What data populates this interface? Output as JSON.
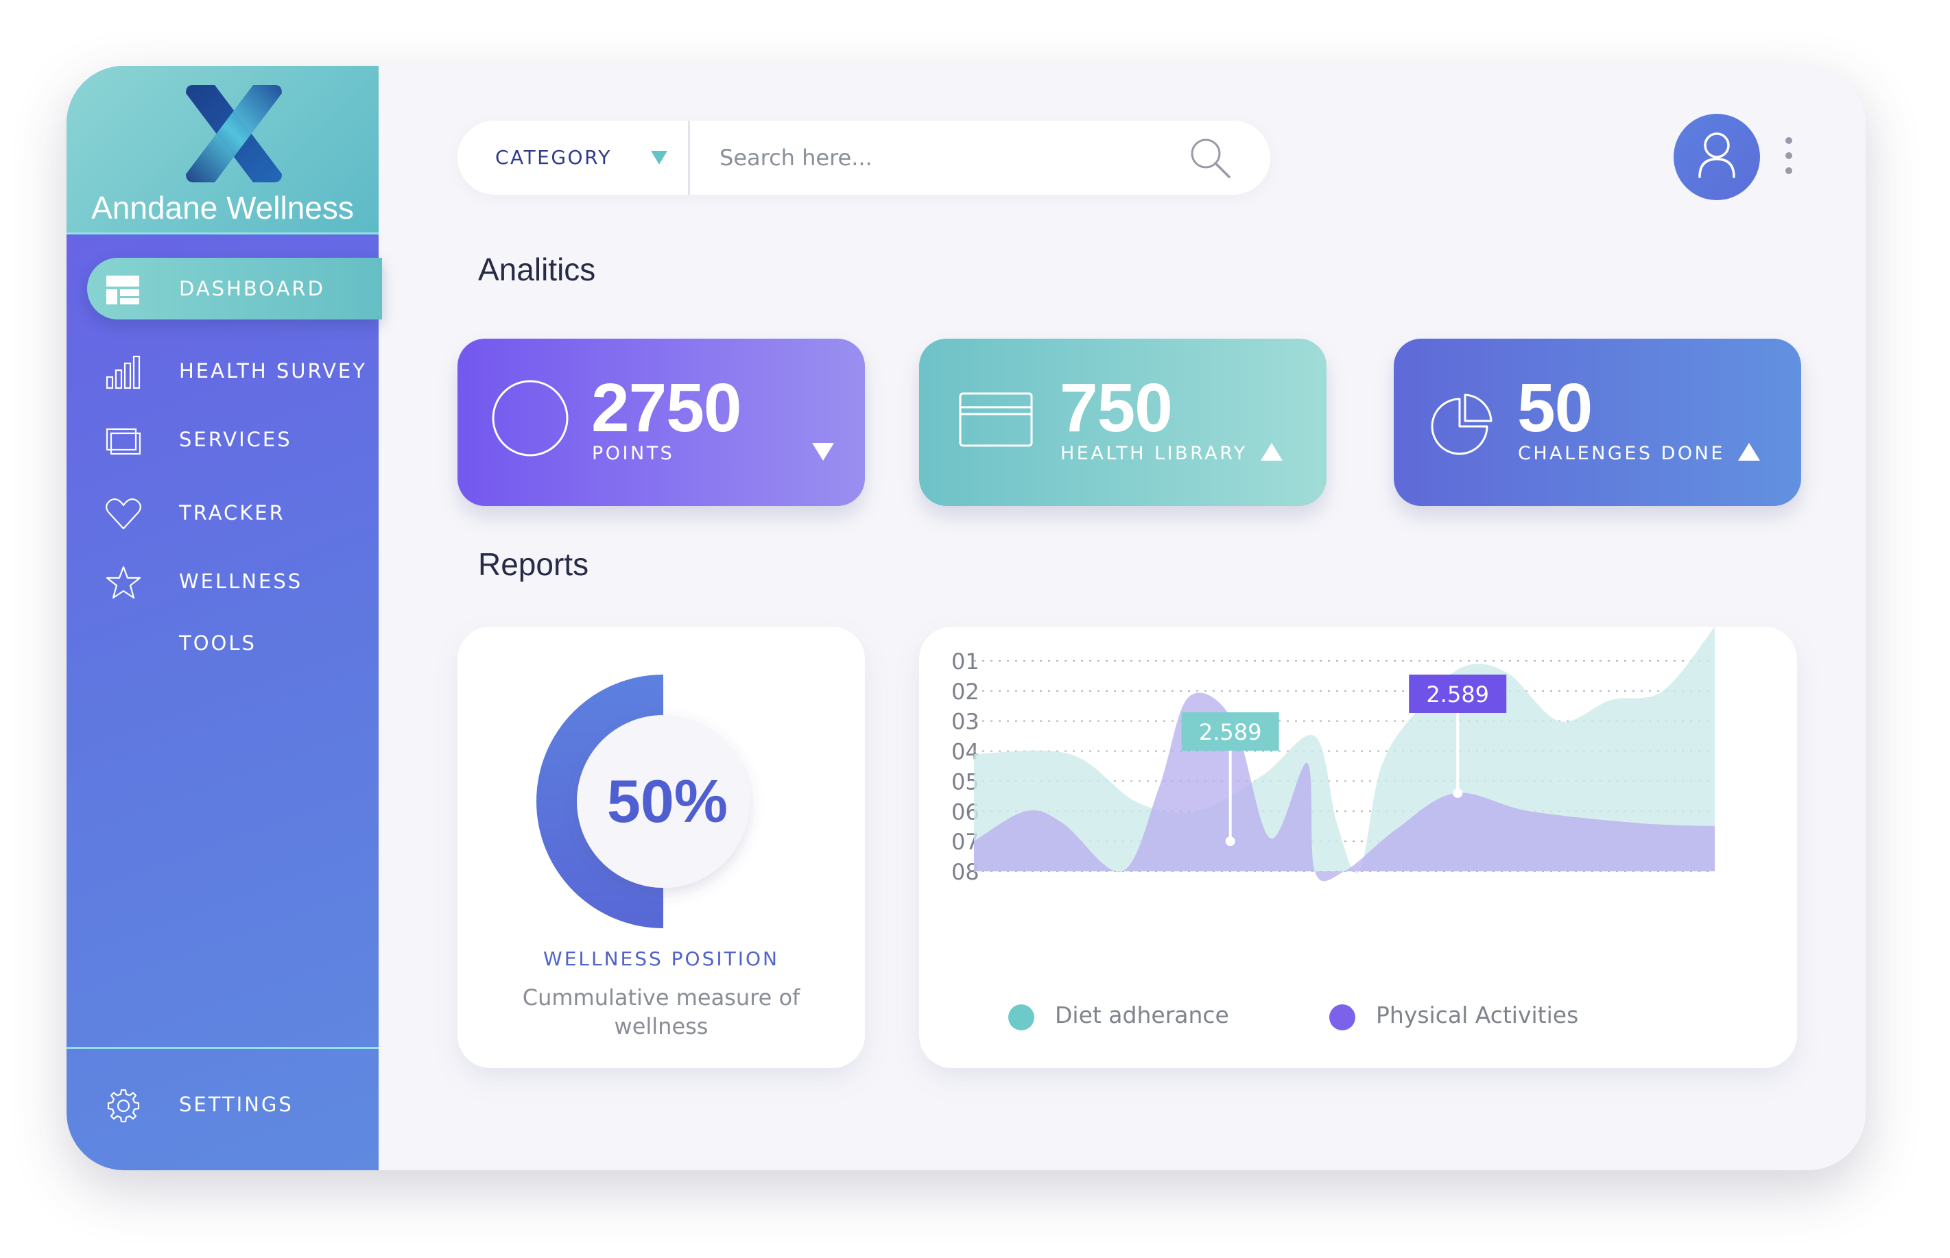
{
  "brand": {
    "name": "Anndane Wellness"
  },
  "sidebar": {
    "items": [
      {
        "label": "DASHBOARD",
        "icon": "dashboard-icon",
        "active": true
      },
      {
        "label": "HEALTH SURVEY",
        "icon": "bar-chart-icon",
        "active": false
      },
      {
        "label": "SERVICES",
        "icon": "layers-icon",
        "active": false
      },
      {
        "label": "TRACKER",
        "icon": "heart-icon",
        "active": false
      },
      {
        "label": "WELLNESS TOOLS",
        "icon": "star-icon",
        "active": false
      }
    ],
    "settings": {
      "label": "SETTINGS",
      "icon": "gear-icon"
    }
  },
  "search": {
    "category_label": "CATEGORY",
    "placeholder": "Search here..."
  },
  "header": {
    "avatar_icon": "user-icon"
  },
  "analytics": {
    "title": "Analitics",
    "cards": [
      {
        "value": "2750",
        "label": "POINTS",
        "icon": "circle-icon",
        "trend": "down"
      },
      {
        "value": "750",
        "label": "HEALTH LIBRARY",
        "icon": "card-icon",
        "trend": "up"
      },
      {
        "value": "50",
        "label": "CHALENGES DONE",
        "icon": "pie-icon",
        "trend": "up"
      }
    ]
  },
  "reports": {
    "title": "Reports",
    "wellness": {
      "value": "50%",
      "percent": 50,
      "title": "WELLNESS POSITION",
      "description": "Cummulative measure of wellness"
    }
  },
  "colors": {
    "accent_purple": "#7458ef",
    "accent_teal": "#6ec2c8",
    "accent_blue": "#5f6ad8",
    "text_dark": "#272b46"
  },
  "chart_data": {
    "type": "area",
    "y_ticks": [
      "01",
      "02",
      "03",
      "04",
      "05",
      "06",
      "07",
      "08"
    ],
    "grid": "dotted horizontal",
    "legend_position": "bottom",
    "series": [
      {
        "name": "Diet adherance",
        "color": "#cdeaea",
        "dot_color": "#6ec9c9",
        "points": [
          [
            0,
            4.1
          ],
          [
            0.13,
            4.1
          ],
          [
            0.22,
            5.7
          ],
          [
            0.3,
            6.0
          ],
          [
            0.39,
            4.8
          ],
          [
            0.46,
            3.5
          ],
          [
            0.49,
            6.4
          ],
          [
            0.52,
            8.0
          ],
          [
            0.55,
            4.5
          ],
          [
            0.6,
            2.6
          ],
          [
            0.66,
            1.2
          ],
          [
            0.72,
            1.4
          ],
          [
            0.79,
            3.0
          ],
          [
            0.86,
            2.3
          ],
          [
            0.93,
            2.0
          ],
          [
            1.0,
            0.0
          ]
        ]
      },
      {
        "name": "Physical Activities",
        "color": "#b9b1f0",
        "dot_color": "#7c62ea",
        "points": [
          [
            0,
            7.0
          ],
          [
            0.07,
            6.0
          ],
          [
            0.12,
            6.4
          ],
          [
            0.2,
            8.0
          ],
          [
            0.25,
            5.2
          ],
          [
            0.29,
            2.2
          ],
          [
            0.35,
            3.0
          ],
          [
            0.4,
            6.9
          ],
          [
            0.45,
            4.4
          ],
          [
            0.46,
            8.0
          ],
          [
            0.5,
            8.0
          ],
          [
            0.57,
            6.6
          ],
          [
            0.65,
            5.4
          ],
          [
            0.75,
            6.0
          ],
          [
            0.9,
            6.4
          ],
          [
            1.0,
            6.5
          ]
        ]
      }
    ],
    "annotations": [
      {
        "label": "2.589",
        "series": "Diet adherance",
        "x": 0.346,
        "y": 7.0
      },
      {
        "label": "2.589",
        "series": "Physical Activities",
        "x": 0.653,
        "y": 5.4
      }
    ]
  }
}
